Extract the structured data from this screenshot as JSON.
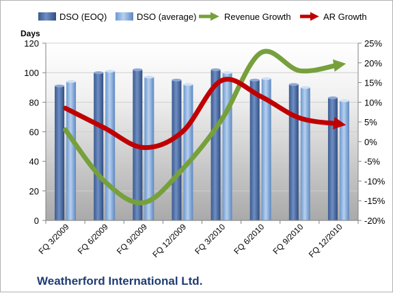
{
  "chart_data": {
    "type": "bar",
    "title": "Weatherford International Ltd.",
    "ylabel": "Days",
    "categories": [
      "FQ 3/2009",
      "FQ 6/2009",
      "FQ 9/2009",
      "FQ 12/2009",
      "FQ 3/2010",
      "FQ 6/2010",
      "FQ 9/2010",
      "FQ 12/2010"
    ],
    "ylim": [
      0,
      120
    ],
    "yticks": [
      "0",
      "20",
      "40",
      "60",
      "80",
      "100",
      "120"
    ],
    "y2lim": [
      -20,
      25
    ],
    "y2ticks": [
      "-20%",
      "-15%",
      "-10%",
      "-5%",
      "0%",
      "5%",
      "10%",
      "15%",
      "20%",
      "25%"
    ],
    "legend_position": "top",
    "series": [
      {
        "name": "DSO (EOQ)",
        "type": "bar",
        "axis": "left",
        "color": "#4f6fa8",
        "values": [
          91,
          100,
          102,
          95,
          102,
          95,
          92,
          83
        ]
      },
      {
        "name": "DSO (average)",
        "type": "bar",
        "axis": "left",
        "color": "#8eb4e3",
        "values": [
          94,
          101,
          97,
          92,
          100,
          96,
          90,
          81
        ]
      },
      {
        "name": "Revenue Growth",
        "type": "line",
        "axis": "right",
        "color": "#77a03c",
        "unit": "%",
        "values": [
          3,
          -10,
          -15.5,
          -7,
          5.5,
          22.5,
          18,
          19.5
        ]
      },
      {
        "name": "AR Growth",
        "type": "line",
        "axis": "right",
        "color": "#c00000",
        "unit": "%",
        "values": [
          8.5,
          3.5,
          -1.5,
          2.5,
          15.5,
          11.5,
          6,
          4.5
        ]
      }
    ]
  }
}
